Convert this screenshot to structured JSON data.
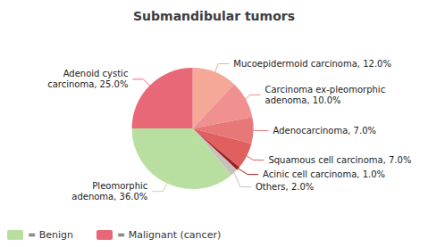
{
  "chart_data": {
    "type": "pie",
    "title": "Submandibular tumors",
    "categories": [
      "Mucoepidermoid carcinoma, 12.0%",
      "Carcinoma ex-pleomorphic\nadenoma, 10.0%",
      "Adenocarcinoma, 7.0%",
      "Squamous cell carcinoma, 7.0%",
      "Acinic cell carcinoma, 1.0%",
      "Others, 2.0%",
      "Pleomorphic\nadenoma, 36.0%",
      "Adenoid cystic\ncarcinoma, 25.0%"
    ],
    "values": [
      12,
      10,
      7,
      7,
      1,
      2,
      36,
      25
    ],
    "colors": [
      "#f5a898",
      "#f09090",
      "#e87878",
      "#e06060",
      "#a02020",
      "#c8c0bc",
      "#b8dfa0",
      "#e86878"
    ],
    "legend": "lower left",
    "legend_items": [
      {
        "name": "= Benign",
        "color": "#b8dfa0"
      },
      {
        "name": "= Malignant (cancer)",
        "color": "#e86878"
      }
    ]
  }
}
